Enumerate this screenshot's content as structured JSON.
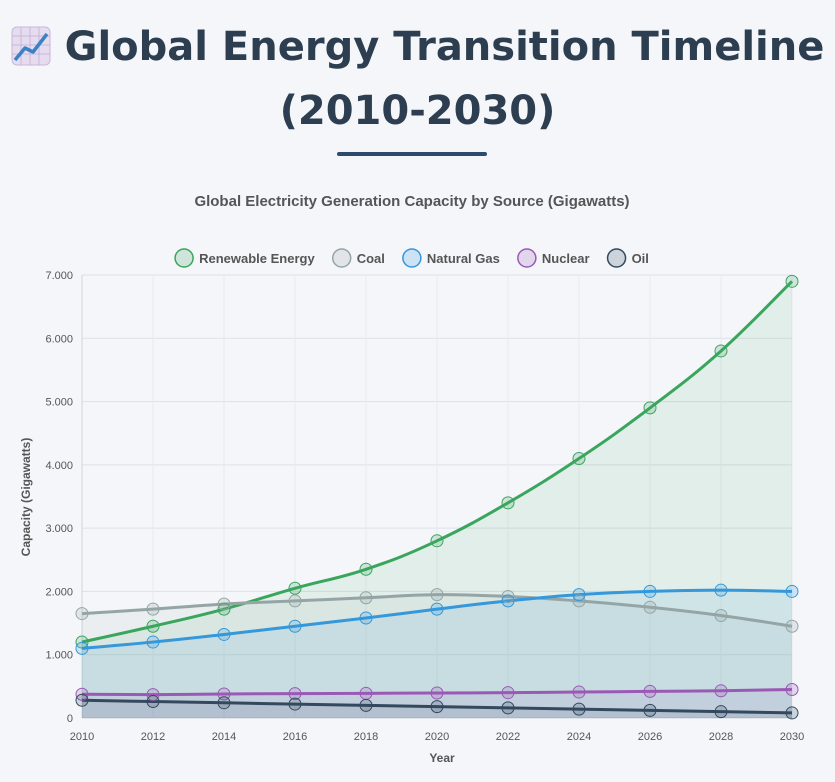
{
  "page": {
    "title_line1": "Global Energy Transition Timeline",
    "title_line2": "(2010-2030)",
    "title_icon": "chart-increasing-icon"
  },
  "chart_data": {
    "type": "line",
    "subtitle": "Global Electricity Generation Capacity by Source (Gigawatts)",
    "xlabel": "Year",
    "ylabel": "Capacity (Gigawatts)",
    "x": [
      2010,
      2012,
      2014,
      2016,
      2018,
      2020,
      2022,
      2024,
      2026,
      2028,
      2030
    ],
    "ylim": [
      0,
      7000
    ],
    "yticks": [
      0,
      1000,
      2000,
      3000,
      4000,
      5000,
      6000,
      7000
    ],
    "ytick_labels": [
      "0",
      "1.000",
      "2.000",
      "3.000",
      "4.000",
      "5.000",
      "6.000",
      "7.000"
    ],
    "grid": true,
    "legend_position": "top-center",
    "area_fill": true,
    "series": [
      {
        "name": "Renewable Energy",
        "color": "#3aa55d",
        "values": [
          1200,
          1450,
          1720,
          2050,
          2350,
          2800,
          3400,
          4100,
          4900,
          5800,
          6900
        ]
      },
      {
        "name": "Coal",
        "color": "#95a5a6",
        "values": [
          1650,
          1720,
          1800,
          1850,
          1900,
          1950,
          1920,
          1850,
          1750,
          1620,
          1450
        ]
      },
      {
        "name": "Natural Gas",
        "color": "#3498db",
        "values": [
          1100,
          1200,
          1320,
          1450,
          1580,
          1720,
          1850,
          1950,
          2000,
          2020,
          2000
        ]
      },
      {
        "name": "Nuclear",
        "color": "#9b59b6",
        "values": [
          375,
          370,
          380,
          385,
          390,
          395,
          400,
          410,
          420,
          430,
          450
        ]
      },
      {
        "name": "Oil",
        "color": "#34495e",
        "values": [
          280,
          260,
          240,
          220,
          200,
          180,
          160,
          140,
          120,
          100,
          80
        ]
      }
    ]
  }
}
